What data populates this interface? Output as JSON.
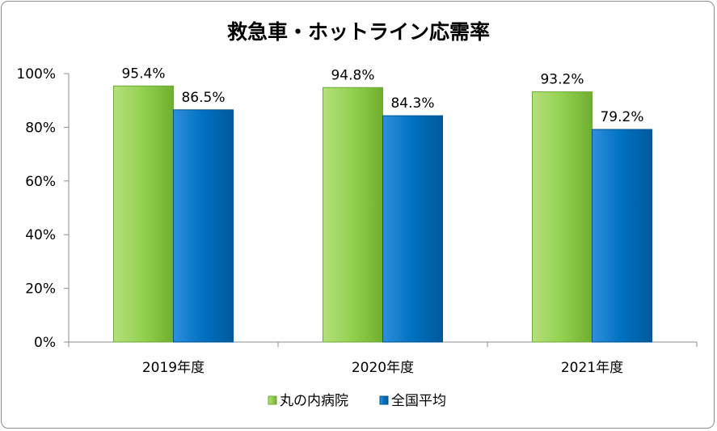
{
  "chart_data": {
    "type": "bar",
    "title": "救急車・ホットライン応需率",
    "categories": [
      "2019年度",
      "2020年度",
      "2021年度"
    ],
    "series": [
      {
        "name": "丸の内病院",
        "values": [
          95.4,
          94.8,
          93.2
        ],
        "color": "#92d050"
      },
      {
        "name": "全国平均",
        "values": [
          86.5,
          84.3,
          79.2
        ],
        "color": "#0070c0"
      }
    ],
    "ylim": [
      0,
      100
    ],
    "yticks": [
      "0%",
      "20%",
      "40%",
      "60%",
      "80%",
      "100%"
    ],
    "data_labels": [
      [
        "95.4%",
        "94.8%",
        "93.2%"
      ],
      [
        "86.5%",
        "84.3%",
        "79.2%"
      ]
    ],
    "grid": false,
    "legend_position": "bottom"
  }
}
